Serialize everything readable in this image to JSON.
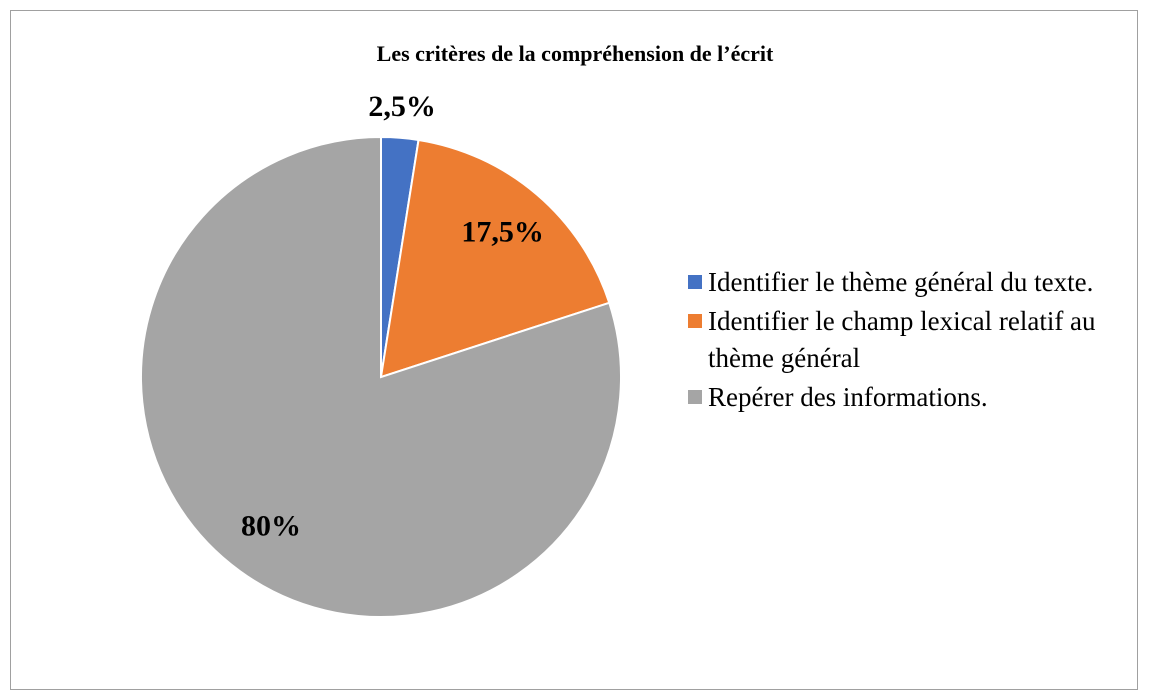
{
  "chart_data": {
    "type": "pie",
    "title": "Les critères de la compréhension de l’écrit",
    "categories": [
      "Identifier le thème général du texte.",
      "Identifier le champ lexical relatif au thème général",
      "Repérer des informations."
    ],
    "values": [
      2.5,
      17.5,
      80
    ],
    "value_labels": [
      "2,5%",
      "17,5%",
      "80%"
    ],
    "colors": [
      "#4472c4",
      "#ed7d31",
      "#a5a5a5"
    ],
    "legend": "right"
  }
}
